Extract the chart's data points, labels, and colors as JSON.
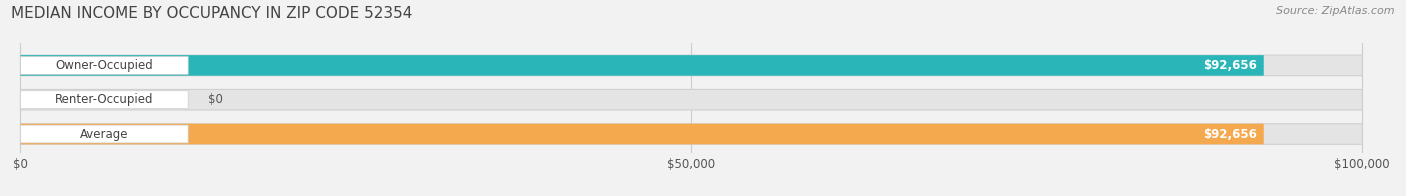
{
  "title": "MEDIAN INCOME BY OCCUPANCY IN ZIP CODE 52354",
  "source": "Source: ZipAtlas.com",
  "categories": [
    "Owner-Occupied",
    "Renter-Occupied",
    "Average"
  ],
  "values": [
    92656,
    0,
    92656
  ],
  "bar_colors": [
    "#2ab5b8",
    "#c4a8d4",
    "#f5a94e"
  ],
  "value_labels": [
    "$92,656",
    "$0",
    "$92,656"
  ],
  "xmax": 100000,
  "xticks": [
    0,
    50000,
    100000
  ],
  "xtick_labels": [
    "$0",
    "$50,000",
    "$100,000"
  ],
  "background_color": "#f2f2f2",
  "bar_bg_color": "#e4e4e4",
  "title_fontsize": 11,
  "source_fontsize": 8,
  "label_fontsize": 8.5,
  "value_fontsize": 8.5,
  "tick_fontsize": 8.5
}
